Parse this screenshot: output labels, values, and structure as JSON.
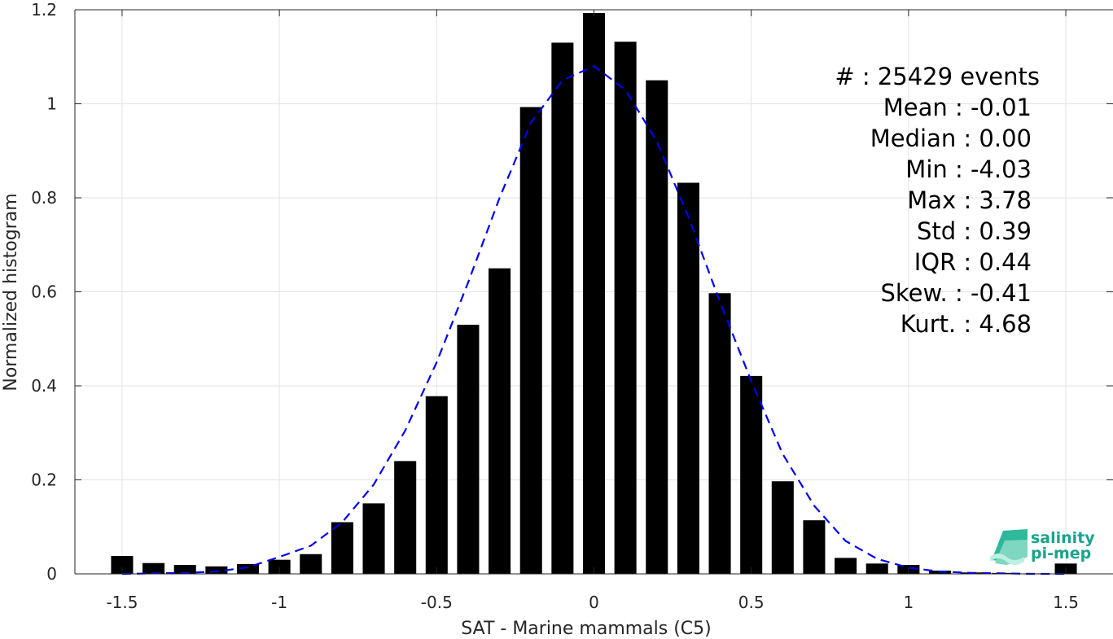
{
  "chart_data": {
    "type": "bar",
    "xlabel": "SAT - Marine mammals (C5)",
    "ylabel": "Normalized histogram",
    "xlim": [
      -1.65,
      1.65
    ],
    "ylim": [
      0,
      1.2
    ],
    "xticks": [
      "-1.5",
      "-1",
      "-0.5",
      "0",
      "0.5",
      "1",
      "1.5"
    ],
    "yticks": [
      "0",
      "0.2",
      "0.4",
      "0.6",
      "0.8",
      "1",
      "1.2"
    ],
    "grid": true,
    "bar_color": "#000000",
    "bar_width": 0.07,
    "bars": {
      "x": [
        -1.5,
        -1.4,
        -1.3,
        -1.2,
        -1.1,
        -1.0,
        -0.9,
        -0.8,
        -0.7,
        -0.6,
        -0.5,
        -0.4,
        -0.3,
        -0.2,
        -0.1,
        0.0,
        0.1,
        0.2,
        0.3,
        0.4,
        0.5,
        0.6,
        0.7,
        0.8,
        0.9,
        1.0,
        1.1,
        1.2,
        1.3,
        1.4,
        1.5
      ],
      "values": [
        0.038,
        0.023,
        0.019,
        0.016,
        0.021,
        0.03,
        0.042,
        0.11,
        0.15,
        0.24,
        0.378,
        0.53,
        0.65,
        0.993,
        1.13,
        1.193,
        1.132,
        1.05,
        0.832,
        0.597,
        0.421,
        0.197,
        0.114,
        0.034,
        0.022,
        0.019,
        0.007,
        0.003,
        0.002,
        0.001,
        0.022
      ]
    },
    "fit_curve": {
      "style": "dashed",
      "color": "#0000ee",
      "x": [
        -1.5,
        -1.4,
        -1.3,
        -1.2,
        -1.1,
        -1.0,
        -0.9,
        -0.8,
        -0.7,
        -0.6,
        -0.5,
        -0.4,
        -0.3,
        -0.2,
        -0.1,
        0.0,
        0.1,
        0.2,
        0.3,
        0.4,
        0.5,
        0.6,
        0.7,
        0.8,
        0.9,
        1.0,
        1.1,
        1.2,
        1.3,
        1.4,
        1.5
      ],
      "y": [
        0.0,
        0.001,
        0.002,
        0.005,
        0.014,
        0.036,
        0.06,
        0.11,
        0.19,
        0.305,
        0.45,
        0.62,
        0.8,
        0.96,
        1.05,
        1.08,
        1.03,
        0.92,
        0.76,
        0.58,
        0.41,
        0.255,
        0.145,
        0.07,
        0.032,
        0.013,
        0.005,
        0.002,
        0.001,
        0.0,
        0.0
      ]
    },
    "annotation_lines": [
      "#  : 25429 events",
      "Mean : -0.01",
      "Median : 0.00",
      "Min : -4.03",
      "Max : 3.78",
      "Std : 0.39",
      "IQR : 0.44",
      "Skew. : -0.41",
      "Kurt. : 4.68"
    ]
  },
  "logo": {
    "line1": "salinity",
    "line2": "pi-mep",
    "color": "#1aa38c"
  }
}
